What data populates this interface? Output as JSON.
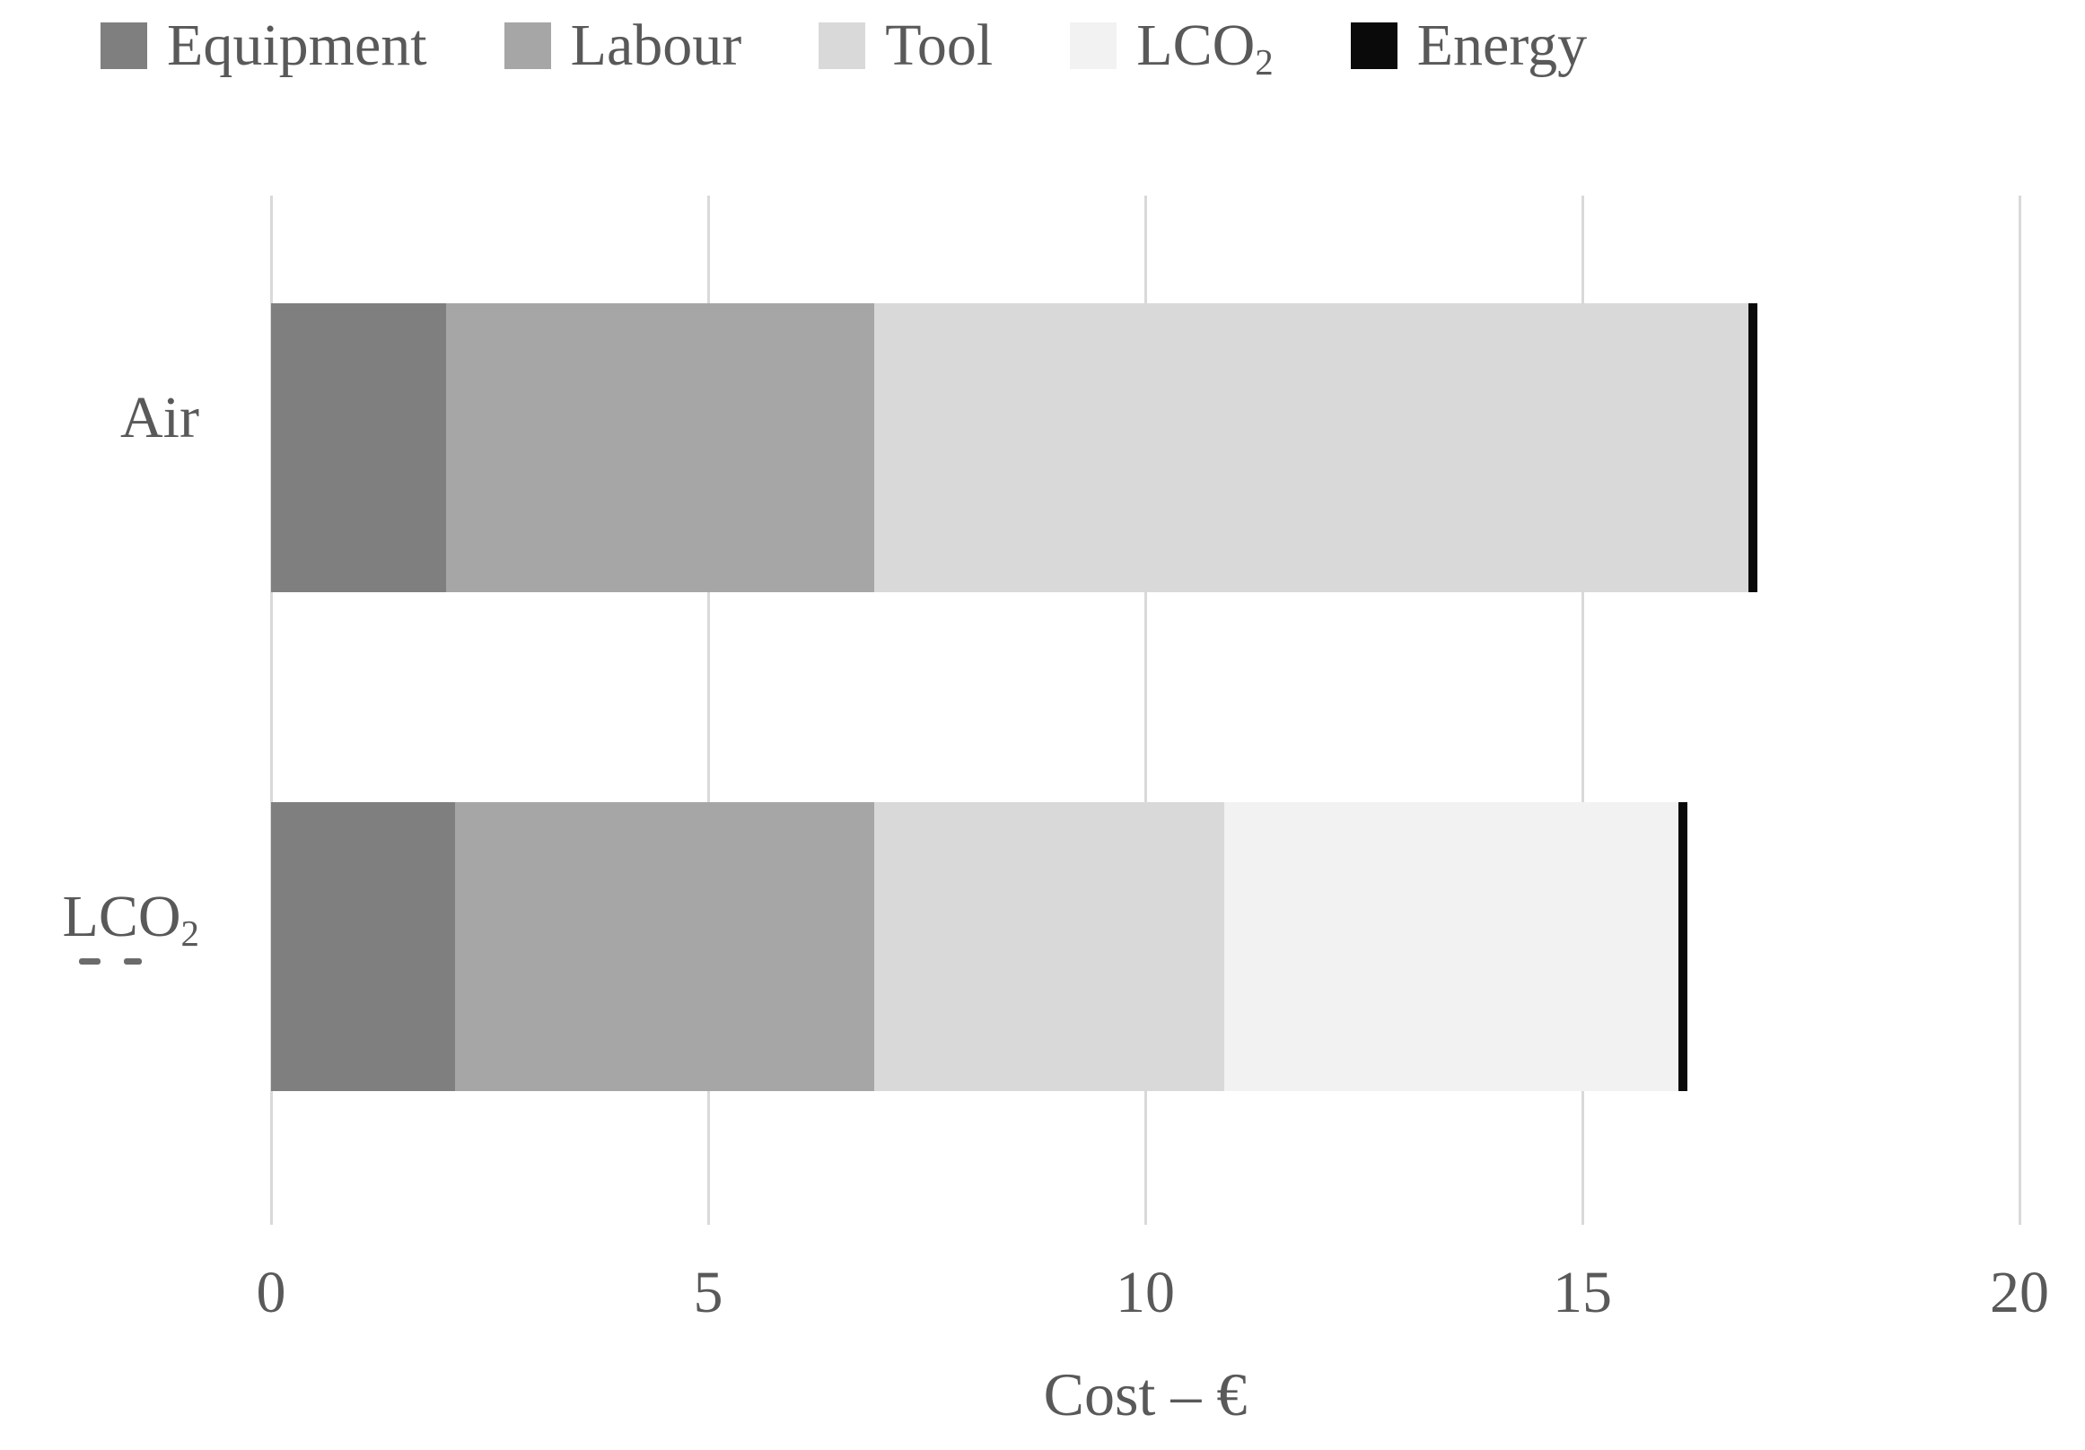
{
  "chart_data": {
    "type": "bar",
    "orientation": "horizontal",
    "stacked": true,
    "title": "",
    "xlabel": "Cost – €",
    "ylabel": "",
    "xlim": [
      0,
      20
    ],
    "xticks": [
      0,
      5,
      10,
      15,
      20
    ],
    "grid": "vertical",
    "legend_position": "top",
    "categories": [
      "Air",
      "LCO2"
    ],
    "series": [
      {
        "name": "Equipment",
        "color": "#7f7f7f",
        "values": [
          2.0,
          2.1
        ]
      },
      {
        "name": "Labour",
        "color": "#a6a6a6",
        "values": [
          4.9,
          4.8
        ]
      },
      {
        "name": "Tool",
        "color": "#d9d9d9",
        "values": [
          10.0,
          4.0
        ]
      },
      {
        "name": "LCO2",
        "color": "#f2f2f2",
        "values": [
          0.0,
          5.2
        ]
      },
      {
        "name": "Energy",
        "color": "#0a0a0a",
        "values": [
          0.1,
          0.1
        ]
      }
    ],
    "totals": [
      17.0,
      16.2
    ]
  },
  "legend": {
    "items": [
      {
        "label": "Equipment",
        "sub": ""
      },
      {
        "label": "Labour",
        "sub": ""
      },
      {
        "label": "Tool",
        "sub": ""
      },
      {
        "label": "LCO",
        "sub": "2"
      },
      {
        "label": "Energy",
        "sub": ""
      }
    ]
  },
  "category_labels": [
    {
      "label": "Air",
      "sub": ""
    },
    {
      "label": "LCO",
      "sub": "2"
    }
  ],
  "axis": {
    "tick_labels": [
      "0",
      "5",
      "10",
      "15",
      "20"
    ],
    "title": "Cost – €"
  },
  "colors": {
    "text": "#595959",
    "gridline": "#d9d9d9",
    "background": "#ffffff"
  }
}
